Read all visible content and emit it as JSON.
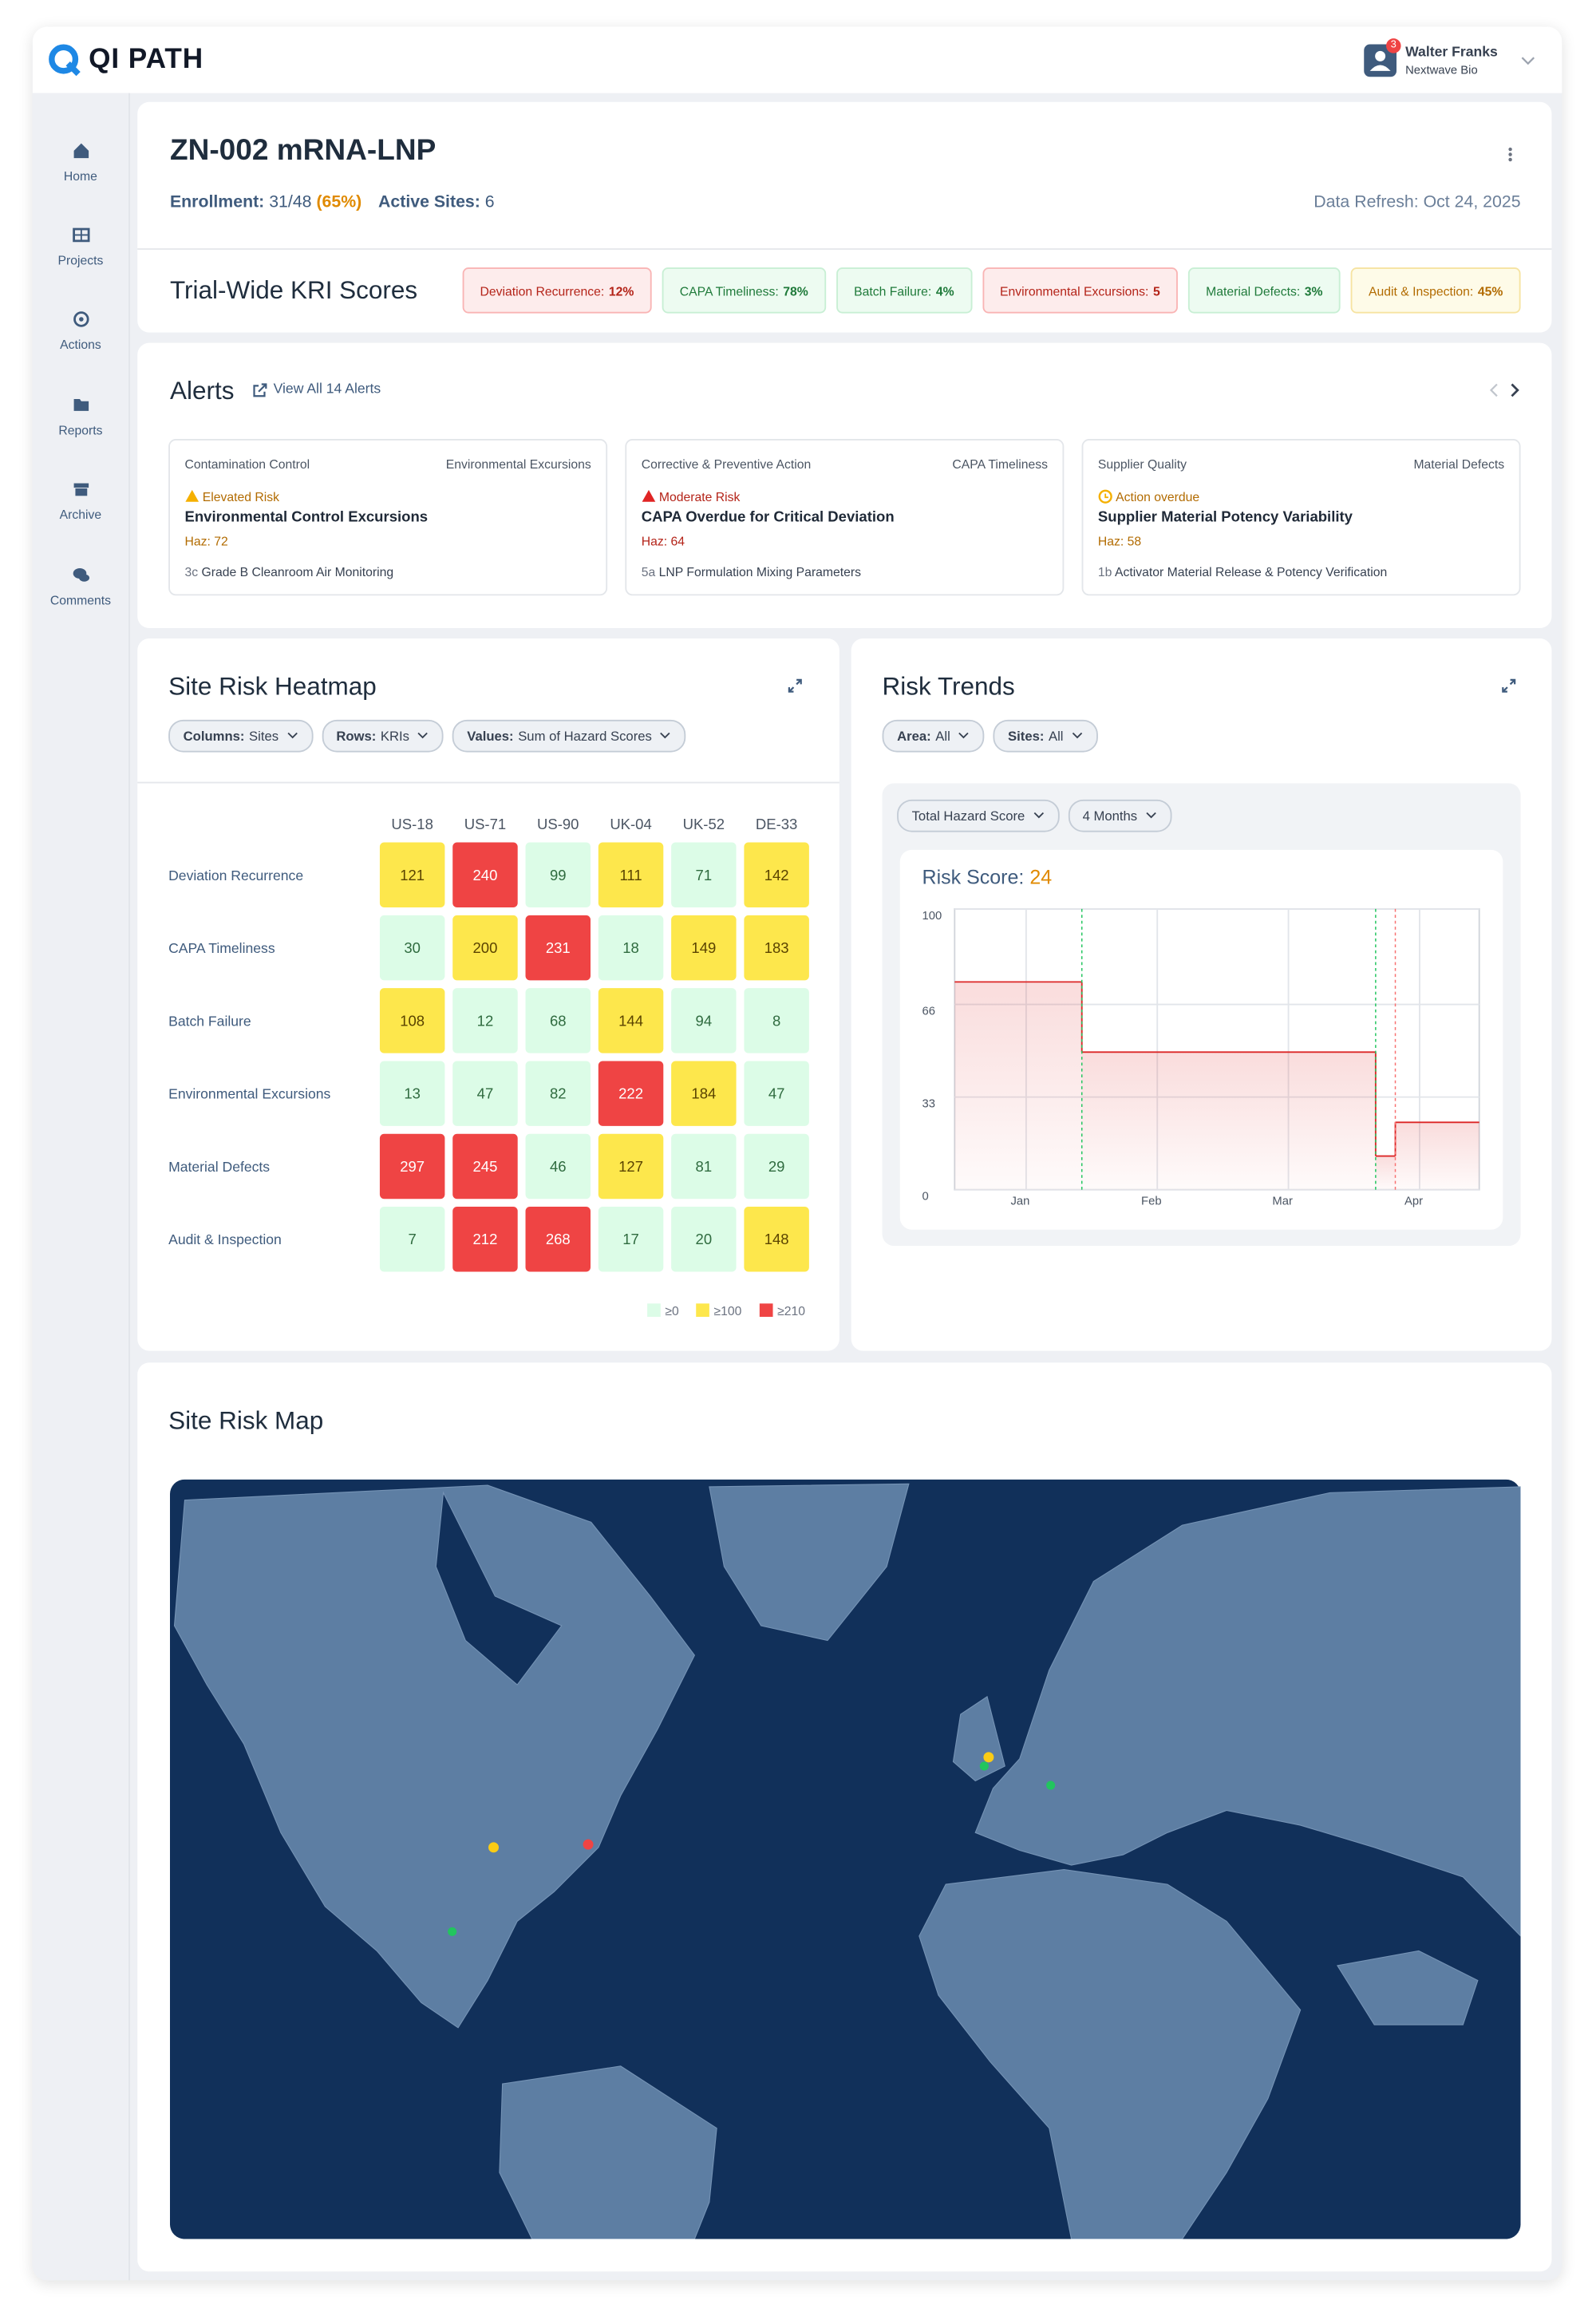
{
  "app": {
    "logo": "QI PATH",
    "user": {
      "name": "Walter Franks",
      "org": "Nextwave Bio",
      "badge": "3"
    },
    "nav": [
      "Home",
      "Projects",
      "Actions",
      "Reports",
      "Archive",
      "Comments"
    ]
  },
  "study": {
    "title": "ZN-002 mRNA-LNP",
    "enrollment_label": "Enrollment:",
    "enrollment": "31/48",
    "enrollment_pct": "(65%)",
    "sites_label": "Active Sites:",
    "sites": "6",
    "refresh": "Data Refresh: Oct 24, 2025"
  },
  "kri": {
    "title": "Trial-Wide KRI Scores",
    "items": [
      {
        "label": "Deviation Recurrence:",
        "value": "12%"
      },
      {
        "label": "CAPA Timeliness:",
        "value": "78%"
      },
      {
        "label": "Batch Failure:",
        "value": "4%"
      },
      {
        "label": "Environmental Excursions:",
        "value": "5"
      },
      {
        "label": "Material Defects:",
        "value": "3%"
      },
      {
        "label": "Audit & Inspection:",
        "value": "45%"
      }
    ]
  },
  "alerts": {
    "title": "Alerts",
    "link": "View All 14 Alerts",
    "items": [
      {
        "category": "Contamination Control",
        "kri": "Environmental Excursions",
        "level": "Elevated Risk",
        "title": "Environmental Control Excursions",
        "haz": "Haz: 72",
        "ref_code": "3c",
        "ref": "Grade B Cleanroom Air Monitoring"
      },
      {
        "category": "Corrective & Preventive Action",
        "kri": "CAPA Timeliness",
        "level": "Moderate Risk",
        "title": "CAPA Overdue for Critical Deviation",
        "haz": "Haz: 64",
        "ref_code": "5a",
        "ref": "LNP Formulation Mixing Parameters"
      },
      {
        "category": "Supplier Quality",
        "kri": "Material Defects",
        "level": "Action overdue",
        "title": "Supplier Material Potency Variability",
        "haz": "Haz: 58",
        "ref_code": "1b",
        "ref": "Activator Material Release & Potency Verification"
      }
    ]
  },
  "heatmap": {
    "title": "Site Risk Heatmap",
    "filters": [
      {
        "label": "Columns:",
        "value": "Sites"
      },
      {
        "label": "Rows:",
        "value": "KRIs"
      },
      {
        "label": "Values:",
        "value": "Sum of Hazard Scores"
      }
    ],
    "columns": [
      "US-18",
      "US-71",
      "US-90",
      "UK-04",
      "UK-52",
      "DE-33"
    ],
    "rows": [
      "Deviation Recurrence",
      "CAPA Timeliness",
      "Batch Failure",
      "Environmental Excursions",
      "Material Defects",
      "Audit & Inspection"
    ],
    "values": [
      [
        121,
        240,
        99,
        111,
        71,
        142
      ],
      [
        30,
        200,
        231,
        18,
        149,
        183
      ],
      [
        108,
        12,
        68,
        144,
        94,
        8
      ],
      [
        13,
        47,
        82,
        222,
        184,
        47
      ],
      [
        297,
        245,
        46,
        127,
        81,
        29
      ],
      [
        7,
        212,
        268,
        17,
        20,
        148
      ]
    ],
    "legend": [
      {
        "value": 0,
        "label": "≥0",
        "color": "#dcfce7"
      },
      {
        "value": 100,
        "label": "≥100",
        "color": "#fde74c"
      },
      {
        "value": 210,
        "label": "≥210",
        "color": "#ef4444"
      }
    ]
  },
  "trends": {
    "title": "Risk Trends",
    "filters": [
      {
        "label": "Area:",
        "value": "All"
      },
      {
        "label": "Sites:",
        "value": "All"
      }
    ],
    "metric": "Total Hazard Score",
    "period": "4 Months",
    "score_label": "Risk Score:",
    "score": 24,
    "chart_data": {
      "type": "step",
      "color": "#dc2626",
      "x": [
        0,
        0.97,
        3.21,
        3.36
      ],
      "values": [
        74,
        49,
        12,
        24
      ],
      "xlim": [
        0,
        4
      ],
      "ylim": [
        0,
        100
      ],
      "xticks": [
        {
          "value": 0.5,
          "label": "Jan"
        },
        {
          "value": 1.5,
          "label": "Feb"
        },
        {
          "value": 2.5,
          "label": "Mar"
        },
        {
          "value": 3.5,
          "label": "Apr"
        }
      ],
      "yticks": [
        0,
        33,
        66,
        100
      ],
      "grid": true
    }
  },
  "map": {
    "title": "Site Risk Map"
  }
}
